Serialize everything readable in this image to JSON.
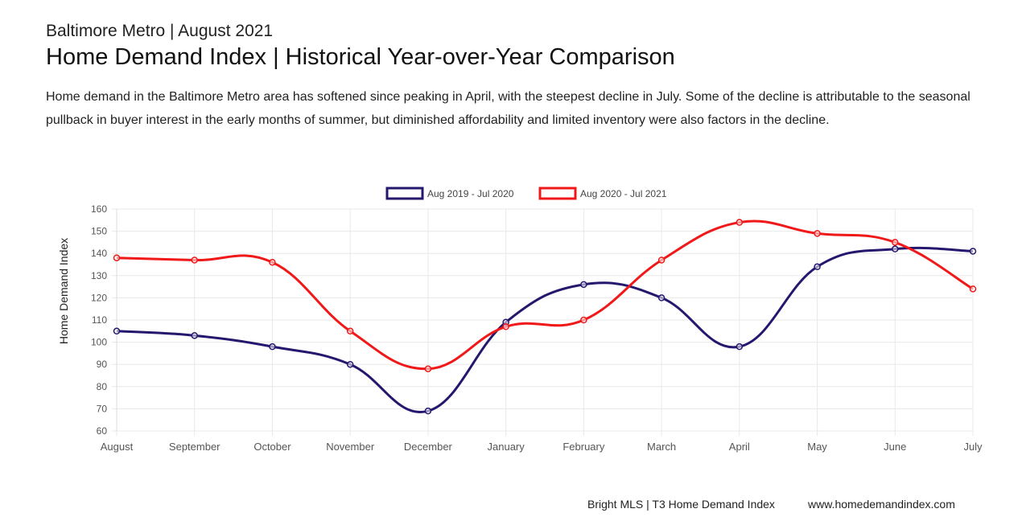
{
  "header": {
    "subtitle": "Baltimore Metro | August 2021",
    "title": "Home Demand Index | Historical Year-over-Year Comparison",
    "description": "Home demand in the Baltimore Metro area has softened since peaking in April, with the steepest decline in July. Some of the decline is attributable to the seasonal pullback in buyer interest in the early months of summer, but diminished affordability and limited inventory were also factors in the decline."
  },
  "footer": {
    "source": "Bright MLS | T3 Home Demand Index",
    "url": "www.homedemandindex.com"
  },
  "chart_data": {
    "type": "line",
    "ylabel": "Home Demand Index",
    "ylim": [
      60,
      160
    ],
    "yticks": [
      60,
      70,
      80,
      90,
      100,
      110,
      120,
      130,
      140,
      150,
      160
    ],
    "categories": [
      "August",
      "September",
      "October",
      "November",
      "December",
      "January",
      "February",
      "March",
      "April",
      "May",
      "June",
      "July"
    ],
    "grid": true,
    "legend_position": "top-center",
    "series": [
      {
        "name": "Aug 2019 - Jul 2020",
        "color": "#23186e",
        "values": [
          105,
          103,
          98,
          90,
          69,
          109,
          126,
          120,
          98,
          134,
          142,
          141
        ]
      },
      {
        "name": "Aug 2020 - Jul 2021",
        "color": "#f01818",
        "values": [
          138,
          137,
          136,
          105,
          88,
          107,
          110,
          137,
          154,
          149,
          145,
          124
        ]
      }
    ]
  }
}
